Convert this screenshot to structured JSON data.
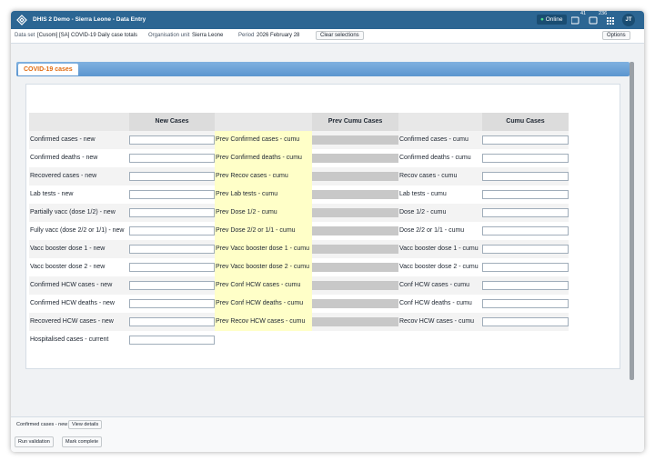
{
  "header": {
    "title": "DHIS 2 Demo - Sierra Leone - Data Entry",
    "status": "Online",
    "messages": "41",
    "interpretations": "236",
    "user": "JT"
  },
  "context": {
    "dataset_label": "Data set",
    "dataset": "[Cusom] [SA] COVID-19 Daily case totals",
    "orgunit_label": "Organisation unit",
    "orgunit": "Sierra Leone",
    "period_label": "Period",
    "period": "2026 February 28",
    "clear": "Clear selections",
    "options": "Options"
  },
  "section": {
    "tab": "COVID-19 cases",
    "columns": [
      "New Cases",
      "Prev Cumu Cases",
      "Cumu Cases"
    ],
    "rows": [
      {
        "new": "Confirmed cases - new",
        "prev": "Prev Confirmed cases - cumu",
        "cumu": "Confirmed cases - cumu"
      },
      {
        "new": "Confirmed deaths - new",
        "prev": "Prev Confirmed deaths - cumu",
        "cumu": "Confirmed deaths - cumu"
      },
      {
        "new": "Recovered cases - new",
        "prev": "Prev Recov cases - cumu",
        "cumu": "Recov cases - cumu"
      },
      {
        "new": "Lab tests - new",
        "prev": "Prev Lab tests - cumu",
        "cumu": "Lab tests - cumu"
      },
      {
        "new": "Partially vacc (dose 1/2) - new",
        "prev": "Prev Dose 1/2 - cumu",
        "cumu": "Dose 1/2 - cumu"
      },
      {
        "new": "Fully vacc (dose 2/2 or 1/1) - new",
        "prev": "Prev Dose 2/2 or 1/1 - cumu",
        "cumu": "Dose 2/2 or 1/1 - cumu"
      },
      {
        "new": "Vacc booster dose 1 - new",
        "prev": "Prev Vacc booster dose 1 - cumu",
        "cumu": "Vacc booster dose 1 - cumu"
      },
      {
        "new": "Vacc booster dose 2 - new",
        "prev": "Prev Vacc booster dose 2 - cumu",
        "cumu": "Vacc booster dose 2 - cumu"
      },
      {
        "new": "Confirmed HCW cases - new",
        "prev": "Prev Conf HCW cases - cumu",
        "cumu": "Conf HCW cases - cumu"
      },
      {
        "new": "Confirmed HCW deaths - new",
        "prev": "Prev Conf HCW deaths - cumu",
        "cumu": "Conf HCW deaths - cumu"
      },
      {
        "new": "Recovered HCW cases - new",
        "prev": "Prev Recov HCW cases - cumu",
        "cumu": "Recov HCW cases - cumu"
      },
      {
        "new": "Hospitalised cases - current"
      }
    ]
  },
  "footer": {
    "selected": "Confirmed cases - new",
    "details": "View details",
    "validate": "Run validation",
    "complete": "Mark complete"
  }
}
